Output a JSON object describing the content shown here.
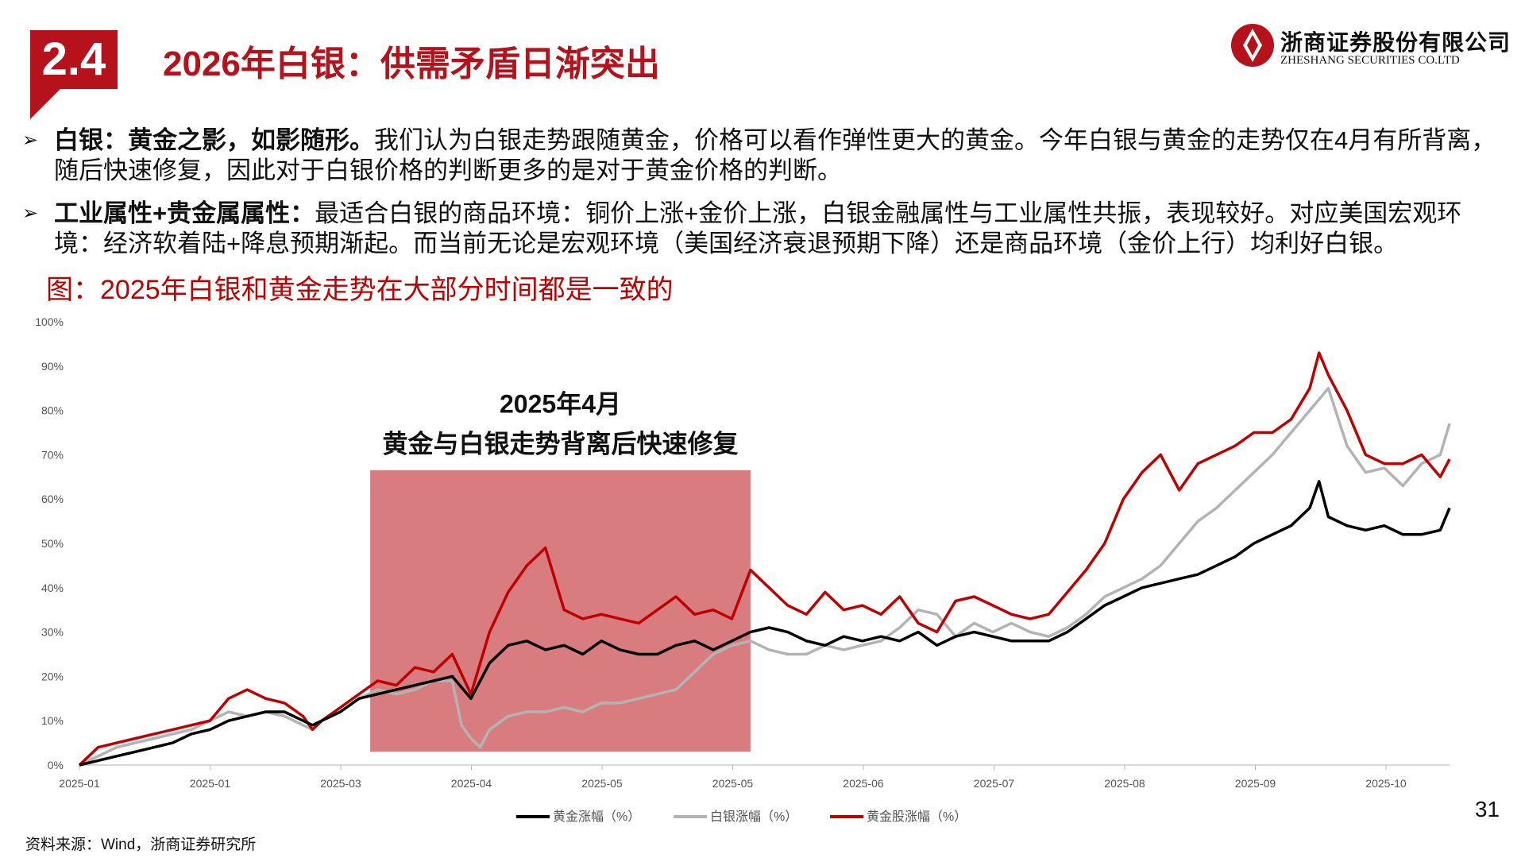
{
  "header": {
    "section_number": "2.4",
    "title": "2026年白银：供需矛盾日渐突出",
    "logo_cn": "浙商证券股份有限公司",
    "logo_en": "ZHESHANG SECURITIES CO.LTD"
  },
  "bullets": [
    {
      "bold": "白银：黄金之影，如影随形。",
      "text": "我们认为白银走势跟随黄金，价格可以看作弹性更大的黄金。今年白银与黄金的走势仅在4月有所背离，随后快速修复，因此对于白银价格的判断更多的是对于黄金价格的判断。"
    },
    {
      "bold": "工业属性+贵金属属性：",
      "text": "最适合白银的商品环境：铜价上涨+金价上涨，白银金融属性与工业属性共振，表现较好。对应美国宏观环境：经济软着陆+降息预期渐起。而当前无论是宏观环境（美国经济衰退预期下降）还是商品环境（金价上行）均利好白银。"
    }
  ],
  "figure_caption": "图：2025年白银和黄金走势在大部分时间都是一致的",
  "page_number": "31",
  "source": "资料来源：Wind，浙商证券研究所",
  "colors": {
    "brand_red": "#b5121b",
    "gold": "#000000",
    "silver": "#b3b3b3",
    "gold_stocks": "#c00000",
    "highlight": "#c94548"
  },
  "chart_data": {
    "type": "line",
    "y_ticks": [
      "0%",
      "10%",
      "20%",
      "30%",
      "40%",
      "50%",
      "60%",
      "70%",
      "80%",
      "90%",
      "100%"
    ],
    "ylim": [
      0,
      100
    ],
    "x_tick_labels": [
      "2025-01",
      "2025-01",
      "2025-03",
      "2025-04",
      "2025-05",
      "2025-05",
      "2025-06",
      "2025-07",
      "2025-08",
      "2025-09",
      "2025-10"
    ],
    "annotation": {
      "line1": "2025年4月",
      "line2": "黄金与白银走势背离后快速修复",
      "x_from": 31.2,
      "x_to": 72.0
    },
    "legend": [
      "黄金涨幅（%）",
      "白银涨幅（%）",
      "黄金股涨幅（%）"
    ],
    "series": [
      {
        "name": "黄金涨幅（%）",
        "points": [
          [
            0,
            0
          ],
          [
            2,
            1
          ],
          [
            4,
            2
          ],
          [
            6,
            3
          ],
          [
            8,
            4
          ],
          [
            10,
            5
          ],
          [
            12,
            7
          ],
          [
            14,
            8
          ],
          [
            16,
            10
          ],
          [
            18,
            11
          ],
          [
            20,
            12
          ],
          [
            22,
            12
          ],
          [
            24,
            10
          ],
          [
            25,
            9
          ],
          [
            26,
            10
          ],
          [
            28,
            12
          ],
          [
            30,
            15
          ],
          [
            32,
            16
          ],
          [
            34,
            17
          ],
          [
            36,
            18
          ],
          [
            38,
            19
          ],
          [
            40,
            20
          ],
          [
            42,
            15
          ],
          [
            44,
            23
          ],
          [
            46,
            27
          ],
          [
            48,
            28
          ],
          [
            50,
            26
          ],
          [
            52,
            27
          ],
          [
            54,
            25
          ],
          [
            56,
            28
          ],
          [
            58,
            26
          ],
          [
            60,
            25
          ],
          [
            62,
            25
          ],
          [
            64,
            27
          ],
          [
            66,
            28
          ],
          [
            68,
            26
          ],
          [
            70,
            28
          ],
          [
            72,
            30
          ],
          [
            74,
            31
          ],
          [
            76,
            30
          ],
          [
            78,
            28
          ],
          [
            80,
            27
          ],
          [
            82,
            29
          ],
          [
            84,
            28
          ],
          [
            86,
            29
          ],
          [
            88,
            28
          ],
          [
            90,
            30
          ],
          [
            92,
            27
          ],
          [
            94,
            29
          ],
          [
            96,
            30
          ],
          [
            98,
            29
          ],
          [
            100,
            28
          ],
          [
            102,
            28
          ],
          [
            104,
            28
          ],
          [
            106,
            30
          ],
          [
            108,
            33
          ],
          [
            110,
            36
          ],
          [
            112,
            38
          ],
          [
            114,
            40
          ],
          [
            116,
            41
          ],
          [
            118,
            42
          ],
          [
            120,
            43
          ],
          [
            122,
            45
          ],
          [
            124,
            47
          ],
          [
            126,
            50
          ],
          [
            128,
            52
          ],
          [
            130,
            54
          ],
          [
            132,
            58
          ],
          [
            133,
            64
          ],
          [
            134,
            56
          ],
          [
            136,
            54
          ],
          [
            138,
            53
          ],
          [
            140,
            54
          ],
          [
            142,
            52
          ],
          [
            144,
            52
          ],
          [
            146,
            53
          ],
          [
            147,
            58
          ]
        ]
      },
      {
        "name": "白银涨幅（%）",
        "points": [
          [
            0,
            0
          ],
          [
            2,
            2
          ],
          [
            4,
            4
          ],
          [
            6,
            5
          ],
          [
            8,
            6
          ],
          [
            10,
            7
          ],
          [
            12,
            8
          ],
          [
            14,
            10
          ],
          [
            16,
            12
          ],
          [
            18,
            11
          ],
          [
            20,
            12
          ],
          [
            22,
            11
          ],
          [
            24,
            9
          ],
          [
            25,
            8
          ],
          [
            26,
            10
          ],
          [
            28,
            12
          ],
          [
            30,
            15
          ],
          [
            32,
            17
          ],
          [
            34,
            16
          ],
          [
            36,
            17
          ],
          [
            38,
            19
          ],
          [
            40,
            19
          ],
          [
            41,
            9
          ],
          [
            42,
            6
          ],
          [
            43,
            4
          ],
          [
            44,
            8
          ],
          [
            46,
            11
          ],
          [
            48,
            12
          ],
          [
            50,
            12
          ],
          [
            52,
            13
          ],
          [
            54,
            12
          ],
          [
            56,
            14
          ],
          [
            58,
            14
          ],
          [
            60,
            15
          ],
          [
            62,
            16
          ],
          [
            64,
            17
          ],
          [
            66,
            21
          ],
          [
            68,
            25
          ],
          [
            70,
            27
          ],
          [
            72,
            28
          ],
          [
            74,
            26
          ],
          [
            76,
            25
          ],
          [
            78,
            25
          ],
          [
            80,
            27
          ],
          [
            82,
            26
          ],
          [
            84,
            27
          ],
          [
            86,
            28
          ],
          [
            88,
            31
          ],
          [
            90,
            35
          ],
          [
            92,
            34
          ],
          [
            94,
            29
          ],
          [
            96,
            32
          ],
          [
            98,
            30
          ],
          [
            100,
            32
          ],
          [
            102,
            30
          ],
          [
            104,
            29
          ],
          [
            106,
            31
          ],
          [
            108,
            34
          ],
          [
            110,
            38
          ],
          [
            112,
            40
          ],
          [
            114,
            42
          ],
          [
            116,
            45
          ],
          [
            118,
            50
          ],
          [
            120,
            55
          ],
          [
            122,
            58
          ],
          [
            124,
            62
          ],
          [
            126,
            66
          ],
          [
            128,
            70
          ],
          [
            130,
            75
          ],
          [
            132,
            80
          ],
          [
            134,
            85
          ],
          [
            136,
            72
          ],
          [
            138,
            66
          ],
          [
            140,
            67
          ],
          [
            142,
            63
          ],
          [
            144,
            68
          ],
          [
            146,
            70
          ],
          [
            147,
            77
          ]
        ]
      },
      {
        "name": "黄金股涨幅（%）",
        "points": [
          [
            0,
            0
          ],
          [
            2,
            4
          ],
          [
            4,
            5
          ],
          [
            6,
            6
          ],
          [
            8,
            7
          ],
          [
            10,
            8
          ],
          [
            12,
            9
          ],
          [
            14,
            10
          ],
          [
            16,
            15
          ],
          [
            18,
            17
          ],
          [
            20,
            15
          ],
          [
            22,
            14
          ],
          [
            24,
            11
          ],
          [
            25,
            8
          ],
          [
            26,
            10
          ],
          [
            28,
            13
          ],
          [
            30,
            16
          ],
          [
            32,
            19
          ],
          [
            34,
            18
          ],
          [
            36,
            22
          ],
          [
            38,
            21
          ],
          [
            40,
            25
          ],
          [
            42,
            16
          ],
          [
            44,
            30
          ],
          [
            46,
            39
          ],
          [
            48,
            45
          ],
          [
            50,
            49
          ],
          [
            52,
            35
          ],
          [
            54,
            33
          ],
          [
            56,
            34
          ],
          [
            58,
            33
          ],
          [
            60,
            32
          ],
          [
            62,
            35
          ],
          [
            64,
            38
          ],
          [
            66,
            34
          ],
          [
            68,
            35
          ],
          [
            70,
            33
          ],
          [
            72,
            44
          ],
          [
            74,
            40
          ],
          [
            76,
            36
          ],
          [
            78,
            34
          ],
          [
            80,
            39
          ],
          [
            82,
            35
          ],
          [
            84,
            36
          ],
          [
            86,
            34
          ],
          [
            88,
            38
          ],
          [
            90,
            32
          ],
          [
            92,
            30
          ],
          [
            94,
            37
          ],
          [
            96,
            38
          ],
          [
            98,
            36
          ],
          [
            100,
            34
          ],
          [
            102,
            33
          ],
          [
            104,
            34
          ],
          [
            106,
            39
          ],
          [
            108,
            44
          ],
          [
            110,
            50
          ],
          [
            112,
            60
          ],
          [
            114,
            66
          ],
          [
            116,
            70
          ],
          [
            118,
            62
          ],
          [
            120,
            68
          ],
          [
            122,
            70
          ],
          [
            124,
            72
          ],
          [
            126,
            75
          ],
          [
            128,
            75
          ],
          [
            130,
            78
          ],
          [
            132,
            85
          ],
          [
            133,
            93
          ],
          [
            134,
            88
          ],
          [
            136,
            80
          ],
          [
            138,
            70
          ],
          [
            140,
            68
          ],
          [
            142,
            68
          ],
          [
            144,
            70
          ],
          [
            146,
            65
          ],
          [
            147,
            69
          ]
        ]
      }
    ]
  }
}
